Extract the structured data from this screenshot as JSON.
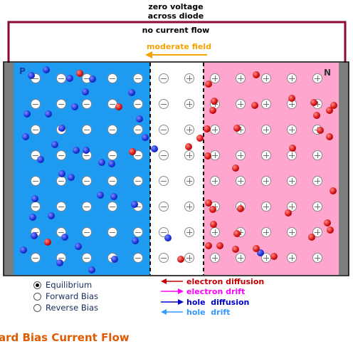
{
  "header": {
    "line1": "zero voltage",
    "line2": "across diode",
    "current_label": "no current flow",
    "field_label": "moderate field"
  },
  "regions": {
    "p_label": "P",
    "n_label": "N"
  },
  "bias_options": {
    "selected": "Equilibrium",
    "items": [
      {
        "label": "Equilibrium",
        "selected": true
      },
      {
        "label": "Forward Bias",
        "selected": false
      },
      {
        "label": "Reverse Bias",
        "selected": false
      }
    ]
  },
  "legend": [
    {
      "label": "electron diffusion",
      "color": "#c00000",
      "direction": "left"
    },
    {
      "label": "electron drift",
      "color": "#ff00ff",
      "direction": "right"
    },
    {
      "label": "hole  diffusion",
      "color": "#0000cc",
      "direction": "right"
    },
    {
      "label": "hole  drift",
      "color": "#3399ff",
      "direction": "left"
    }
  ],
  "footer_title": "ard Bias Current Flow",
  "colors": {
    "p_region": "#1e9bf0",
    "n_region": "#ffa6cf",
    "circuit_wire": "#8b0a3a",
    "field_arrow": "#f5a300",
    "footer": "#e05a00"
  }
}
